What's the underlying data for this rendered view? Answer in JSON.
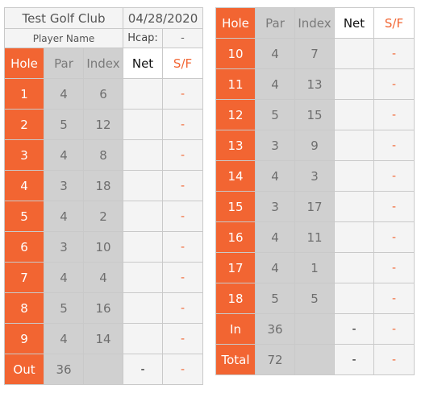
{
  "club": {
    "name": "Test Golf Club",
    "date": "04/28/2020",
    "player_name": "Player Name",
    "hcap_label": "Hcap:",
    "hcap_value": "-"
  },
  "headers": {
    "hole": "Hole",
    "par": "Par",
    "index": "Index",
    "net": "Net",
    "sf": "S/F"
  },
  "front_nine": [
    {
      "hole": "1",
      "par": "4",
      "index": "6",
      "net": "",
      "sf": "-"
    },
    {
      "hole": "2",
      "par": "5",
      "index": "12",
      "net": "",
      "sf": "-"
    },
    {
      "hole": "3",
      "par": "4",
      "index": "8",
      "net": "",
      "sf": "-"
    },
    {
      "hole": "4",
      "par": "3",
      "index": "18",
      "net": "",
      "sf": "-"
    },
    {
      "hole": "5",
      "par": "4",
      "index": "2",
      "net": "",
      "sf": "-"
    },
    {
      "hole": "6",
      "par": "3",
      "index": "10",
      "net": "",
      "sf": "-"
    },
    {
      "hole": "7",
      "par": "4",
      "index": "4",
      "net": "",
      "sf": "-"
    },
    {
      "hole": "8",
      "par": "5",
      "index": "16",
      "net": "",
      "sf": "-"
    },
    {
      "hole": "9",
      "par": "4",
      "index": "14",
      "net": "",
      "sf": "-"
    }
  ],
  "out_row": {
    "label": "Out",
    "par": "36",
    "index": "",
    "net": "-",
    "sf": "-"
  },
  "back_nine": [
    {
      "hole": "10",
      "par": "4",
      "index": "7",
      "net": "",
      "sf": "-"
    },
    {
      "hole": "11",
      "par": "4",
      "index": "13",
      "net": "",
      "sf": "-"
    },
    {
      "hole": "12",
      "par": "5",
      "index": "15",
      "net": "",
      "sf": "-"
    },
    {
      "hole": "13",
      "par": "3",
      "index": "9",
      "net": "",
      "sf": "-"
    },
    {
      "hole": "14",
      "par": "4",
      "index": "3",
      "net": "",
      "sf": "-"
    },
    {
      "hole": "15",
      "par": "3",
      "index": "17",
      "net": "",
      "sf": "-"
    },
    {
      "hole": "16",
      "par": "4",
      "index": "11",
      "net": "",
      "sf": "-"
    },
    {
      "hole": "17",
      "par": "4",
      "index": "1",
      "net": "",
      "sf": "-"
    },
    {
      "hole": "18",
      "par": "5",
      "index": "5",
      "net": "",
      "sf": "-"
    }
  ],
  "in_row": {
    "label": "In",
    "par": "36",
    "index": "",
    "net": "-",
    "sf": "-"
  },
  "total_row": {
    "label": "Total",
    "par": "72",
    "index": "",
    "net": "-",
    "sf": "-"
  },
  "colors": {
    "accent": "#f26532",
    "par_index_fill": "#d0d0d0",
    "score_fill": "#f4f4f4",
    "grid": "#c9c9c9"
  }
}
